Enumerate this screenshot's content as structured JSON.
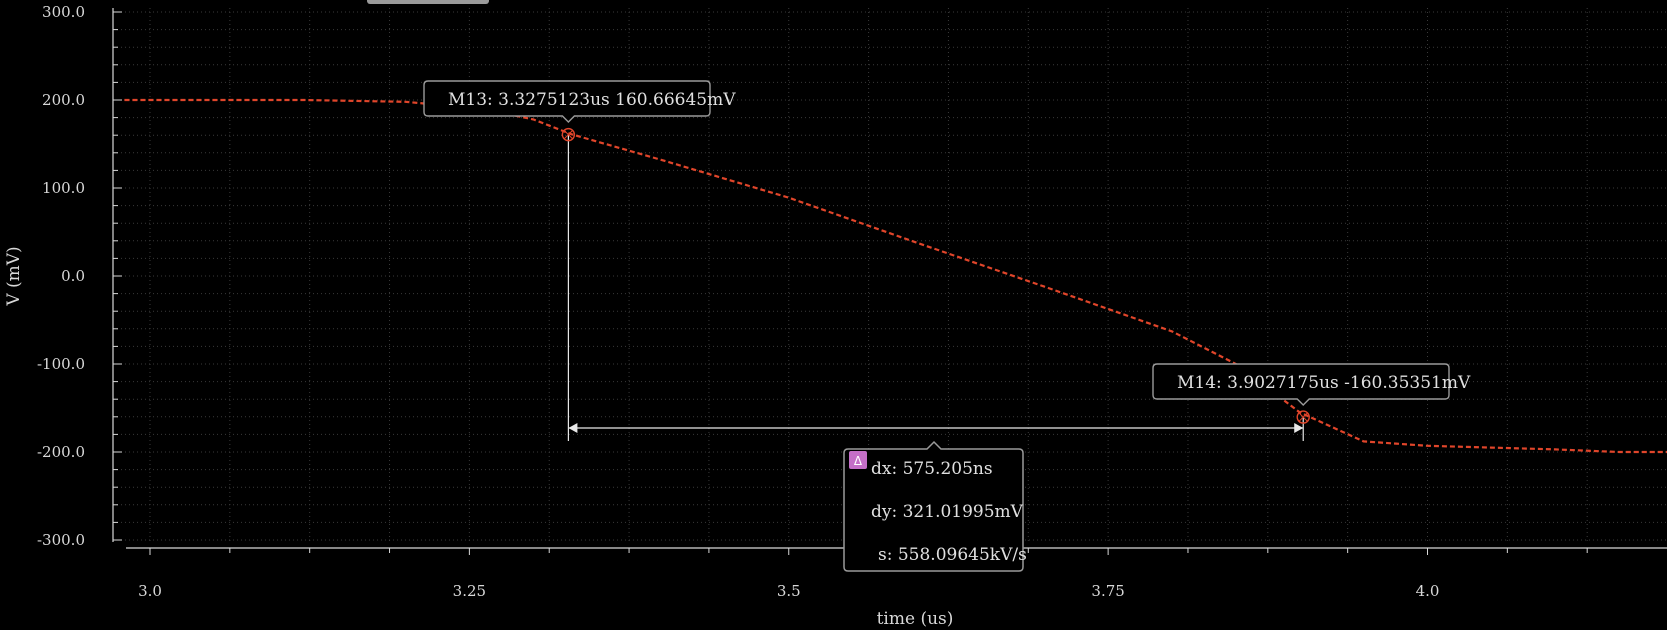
{
  "colors": {
    "background": "#000000",
    "grid": "#3a3a3a",
    "axis": "#d8d8d8",
    "trace": "#e0452a",
    "marker_box_border": "#9a9a9a",
    "delta_badge": "#c46fc7"
  },
  "chart_data": {
    "type": "line",
    "xlabel": "time (us)",
    "ylabel": "V (mV)",
    "xlim": [
      2.98,
      4.2
    ],
    "ylim": [
      -300,
      300
    ],
    "x_ticks": [
      3.0,
      3.25,
      3.5,
      3.75,
      4.0
    ],
    "x_tick_labels": [
      "3.0",
      "3.25",
      "3.5",
      "3.75",
      "4.0"
    ],
    "y_ticks": [
      300,
      200,
      100,
      0,
      -100,
      -200,
      -300
    ],
    "y_tick_labels": [
      "300.0",
      "200.0",
      "100.0",
      "0.0",
      "-100.0",
      "-200.0",
      "-300.0"
    ],
    "grid": true,
    "series": [
      {
        "style": "dashed",
        "x": [
          2.98,
          3.05,
          3.12,
          3.2,
          3.26,
          3.3,
          3.33,
          3.4,
          3.5,
          3.6,
          3.7,
          3.8,
          3.85,
          3.9,
          3.95,
          4.0,
          4.05,
          4.1,
          4.15,
          4.2
        ],
        "y": [
          200,
          200,
          200,
          198,
          190,
          178,
          161,
          132,
          89,
          38,
          -12,
          -63,
          -100,
          -155,
          -188,
          -193,
          -195,
          -197,
          -200,
          -200
        ]
      }
    ],
    "markers": [
      {
        "label": "M13: 3.3275123us 160.66645mV",
        "x": 3.3275123,
        "y": 160.66645
      },
      {
        "label": "M14: 3.9027175us -160.35351mV",
        "x": 3.9027175,
        "y": -160.35351
      }
    ],
    "delta": {
      "badge": "Δ",
      "dx": "dx: 575.205ns",
      "dy": "dy: 321.01995mV",
      "s": "s: 558.09645kV/s"
    }
  }
}
